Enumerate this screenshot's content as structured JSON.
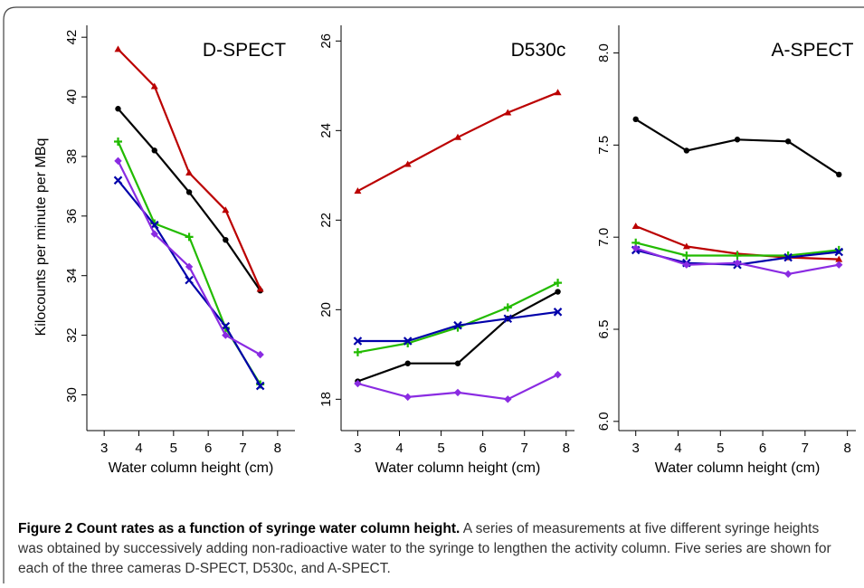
{
  "caption": {
    "title": "Figure 2 Count rates as a function of syringe water column height.",
    "body": "A series of measurements at five different syringe heights was obtained by successively adding non-radioactive water to the syringe to lengthen the activity column. Five series are shown for each of the three cameras D-SPECT, D530c, and A-SPECT."
  },
  "colors": {
    "black": "#000000",
    "red": "#bb0000",
    "green": "#22bb00",
    "blue": "#0000aa",
    "purple": "#8a2be2"
  },
  "chart_data": [
    {
      "type": "line",
      "title": "D-SPECT",
      "xlabel": "Water column height (cm)",
      "ylabel": "Kilocounts per minute per MBq",
      "xlim": [
        2.5,
        8.5
      ],
      "ylim": [
        28.8,
        42.4
      ],
      "xticks": [
        3,
        4,
        5,
        6,
        7,
        8
      ],
      "yticks": [
        30,
        32,
        34,
        36,
        38,
        40,
        42
      ],
      "x": [
        3.4,
        4.45,
        5.45,
        6.5,
        7.5
      ],
      "series": [
        {
          "color": "black",
          "marker": "dot",
          "values": [
            39.6,
            38.2,
            36.8,
            35.2,
            33.5
          ]
        },
        {
          "color": "red",
          "marker": "triangle",
          "values": [
            41.6,
            40.35,
            37.45,
            36.2,
            33.55
          ]
        },
        {
          "color": "green",
          "marker": "plus",
          "values": [
            38.5,
            35.75,
            35.3,
            32.25,
            30.35
          ]
        },
        {
          "color": "blue",
          "marker": "cross",
          "values": [
            37.2,
            35.7,
            33.85,
            32.3,
            30.3
          ]
        },
        {
          "color": "purple",
          "marker": "diamond",
          "values": [
            37.85,
            35.4,
            34.3,
            32.0,
            31.35
          ]
        }
      ]
    },
    {
      "type": "line",
      "title": "D530c",
      "xlabel": "Water column height (cm)",
      "ylabel": "",
      "xlim": [
        2.6,
        8.2
      ],
      "ylim": [
        17.3,
        26.35
      ],
      "xticks": [
        3,
        4,
        5,
        6,
        7,
        8
      ],
      "yticks": [
        18,
        20,
        22,
        24,
        26
      ],
      "x": [
        3.0,
        4.2,
        5.4,
        6.6,
        7.8
      ],
      "series": [
        {
          "color": "black",
          "marker": "dot",
          "values": [
            18.4,
            18.8,
            18.8,
            19.8,
            20.4
          ]
        },
        {
          "color": "red",
          "marker": "triangle",
          "values": [
            22.65,
            23.25,
            23.85,
            24.4,
            24.85
          ]
        },
        {
          "color": "green",
          "marker": "plus",
          "values": [
            19.05,
            19.25,
            19.6,
            20.05,
            20.6
          ]
        },
        {
          "color": "blue",
          "marker": "cross",
          "values": [
            19.3,
            19.3,
            19.65,
            19.8,
            19.95
          ]
        },
        {
          "color": "purple",
          "marker": "diamond",
          "values": [
            18.35,
            18.05,
            18.15,
            18.0,
            18.55
          ]
        }
      ]
    },
    {
      "type": "line",
      "title": "A-SPECT",
      "xlabel": "Water column height (cm)",
      "ylabel": "",
      "xlim": [
        2.6,
        8.2
      ],
      "ylim": [
        5.95,
        8.15
      ],
      "xticks": [
        3,
        4,
        5,
        6,
        7,
        8
      ],
      "yticks": [
        6.0,
        6.5,
        7.0,
        7.5,
        8.0
      ],
      "ytick_labels": [
        "6.0",
        "6.5",
        "7.0",
        "7.5",
        "8.0"
      ],
      "x": [
        3.0,
        4.2,
        5.4,
        6.6,
        7.8
      ],
      "series": [
        {
          "color": "black",
          "marker": "dot",
          "values": [
            7.64,
            7.47,
            7.53,
            7.52,
            7.34
          ]
        },
        {
          "color": "red",
          "marker": "triangle",
          "values": [
            7.06,
            6.95,
            6.91,
            6.89,
            6.88
          ]
        },
        {
          "color": "green",
          "marker": "plus",
          "values": [
            6.97,
            6.9,
            6.9,
            6.9,
            6.93
          ]
        },
        {
          "color": "blue",
          "marker": "cross",
          "values": [
            6.93,
            6.86,
            6.85,
            6.89,
            6.92
          ]
        },
        {
          "color": "purple",
          "marker": "diamond",
          "values": [
            6.94,
            6.85,
            6.86,
            6.8,
            6.85
          ]
        }
      ]
    }
  ]
}
